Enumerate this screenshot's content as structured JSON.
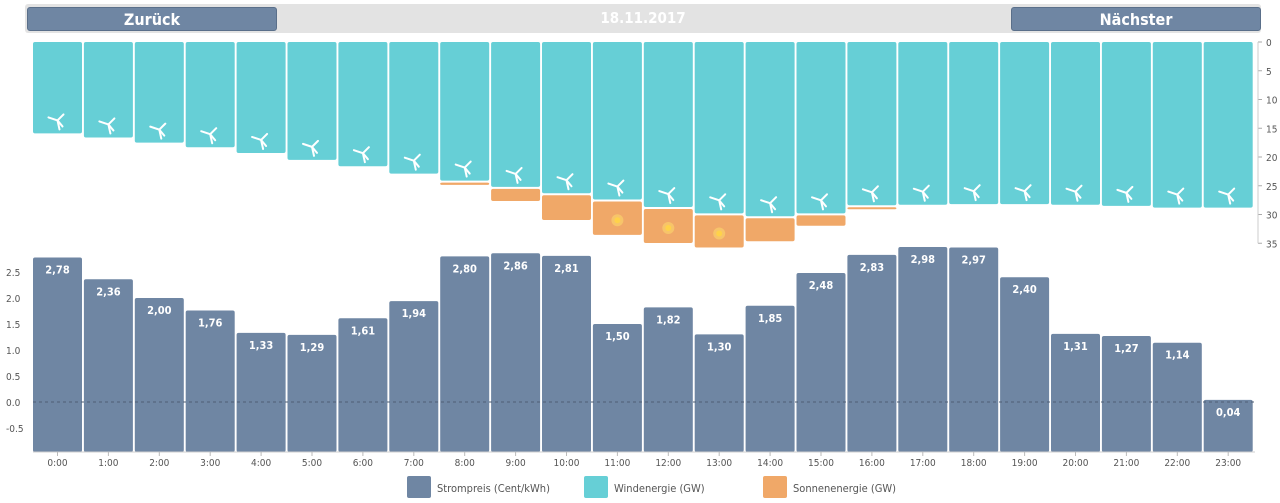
{
  "header": {
    "back_label": "Zurück",
    "date": "18.11.2017",
    "next_label": "Nächster"
  },
  "colors": {
    "price": "#6f86a3",
    "wind": "#66cfd6",
    "solar": "#f0a868",
    "sun_core": "#ffd24a"
  },
  "chart_data": [
    {
      "type": "bar",
      "name": "energy",
      "categories": [
        "0:00",
        "1:00",
        "2:00",
        "3:00",
        "4:00",
        "5:00",
        "6:00",
        "7:00",
        "8:00",
        "9:00",
        "10:00",
        "11:00",
        "12:00",
        "13:00",
        "14:00",
        "15:00",
        "16:00",
        "17:00",
        "18:00",
        "19:00",
        "20:00",
        "21:00",
        "22:00",
        "23:00"
      ],
      "series": [
        {
          "name": "Windenergie (GW)",
          "values": [
            15.9,
            16.6,
            17.5,
            18.3,
            19.3,
            20.5,
            21.6,
            22.9,
            24.1,
            25.2,
            26.3,
            27.4,
            28.7,
            29.8,
            30.3,
            29.8,
            28.4,
            28.3,
            28.2,
            28.2,
            28.3,
            28.5,
            28.8,
            28.8
          ]
        },
        {
          "name": "Sonnenenergie (GW)",
          "values": [
            0,
            0,
            0,
            0,
            0,
            0,
            0,
            0,
            0.4,
            2.1,
            4.3,
            5.8,
            5.9,
            5.6,
            4.0,
            1.8,
            0.3,
            0,
            0,
            0,
            0,
            0,
            0,
            0
          ]
        }
      ],
      "ylim": [
        0,
        35
      ],
      "yticks": [
        "0",
        "5",
        "10",
        "15",
        "20",
        "25",
        "30",
        "35"
      ],
      "ytick_values": [
        0,
        5,
        10,
        15,
        20,
        25,
        30,
        35
      ],
      "inverted": true
    },
    {
      "type": "bar",
      "name": "price",
      "categories": [
        "0:00",
        "1:00",
        "2:00",
        "3:00",
        "4:00",
        "5:00",
        "6:00",
        "7:00",
        "8:00",
        "9:00",
        "10:00",
        "11:00",
        "12:00",
        "13:00",
        "14:00",
        "15:00",
        "16:00",
        "17:00",
        "18:00",
        "19:00",
        "20:00",
        "21:00",
        "22:00",
        "23:00"
      ],
      "series": [
        {
          "name": "Strompreis (Cent/kWh)",
          "values": [
            2.78,
            2.36,
            2.0,
            1.76,
            1.33,
            1.29,
            1.61,
            1.94,
            2.8,
            2.86,
            2.81,
            1.5,
            1.82,
            1.3,
            1.85,
            2.48,
            2.83,
            2.98,
            2.97,
            2.4,
            1.31,
            1.27,
            1.14,
            0.04
          ]
        }
      ],
      "data_labels": [
        "2,78",
        "2,36",
        "2,00",
        "1,76",
        "1,33",
        "1,29",
        "1,61",
        "1,94",
        "2,80",
        "2,86",
        "2,81",
        "1,50",
        "1,82",
        "1,30",
        "1,85",
        "2,48",
        "2,83",
        "2,98",
        "2,97",
        "2,40",
        "1,31",
        "1,27",
        "1,14",
        "0,04"
      ],
      "ylim": [
        -1.0,
        3.0
      ],
      "yticks": [
        "2.5",
        "2.0",
        "1.5",
        "1.0",
        "0.5",
        "0.0",
        "-0.5"
      ],
      "ytick_values": [
        2.5,
        2.0,
        1.5,
        1.0,
        0.5,
        0.0,
        -0.5
      ]
    }
  ],
  "legend": [
    {
      "label": "Strompreis (Cent/kWh)",
      "color": "#6f86a3"
    },
    {
      "label": "Windenergie (GW)",
      "color": "#66cfd6"
    },
    {
      "label": "Sonnenenergie (GW)",
      "color": "#f0a868"
    }
  ]
}
